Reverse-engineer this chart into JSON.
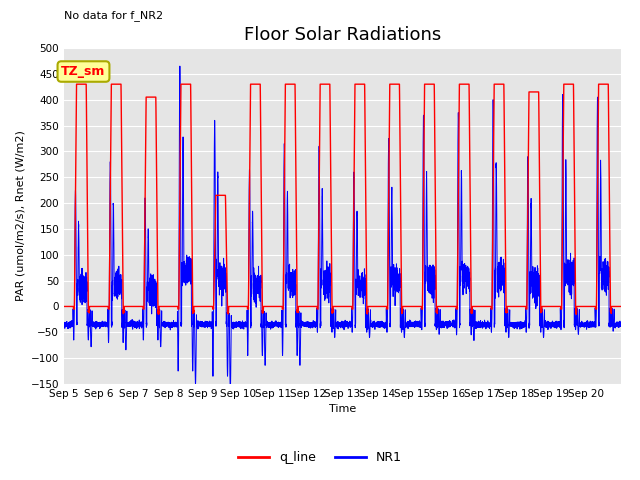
{
  "title": "Floor Solar Radiations",
  "xlabel": "Time",
  "ylabel": "PAR (umol/m2/s), Rnet (W/m2)",
  "note": "No data for f_NR2",
  "legend_label": "TZ_sm",
  "ylim": [
    -150,
    500
  ],
  "yticks": [
    -150,
    -100,
    -50,
    0,
    50,
    100,
    150,
    200,
    250,
    300,
    350,
    400,
    450,
    500
  ],
  "background_color": "#e5e5e5",
  "line_red": "#ff0000",
  "line_blue": "#0000ff",
  "legend_box_color": "#ffff99",
  "legend_box_edge": "#aaaa00",
  "title_fontsize": 13,
  "label_fontsize": 8,
  "tick_fontsize": 7.5,
  "note_fontsize": 8,
  "days": 16,
  "start_day": 5,
  "red_peaks": [
    430,
    430,
    405,
    430,
    215,
    430,
    430,
    430,
    430,
    430,
    430,
    430,
    430,
    415,
    430,
    430
  ],
  "blue_peaks": [
    225,
    280,
    210,
    465,
    360,
    265,
    315,
    310,
    260,
    325,
    370,
    375,
    400,
    290,
    410,
    405
  ],
  "blue_dips": [
    -65,
    -70,
    -65,
    -125,
    -135,
    -95,
    -95,
    -50,
    -50,
    -50,
    -45,
    -55,
    -50,
    -50,
    -45,
    -40
  ],
  "night_level": -35
}
